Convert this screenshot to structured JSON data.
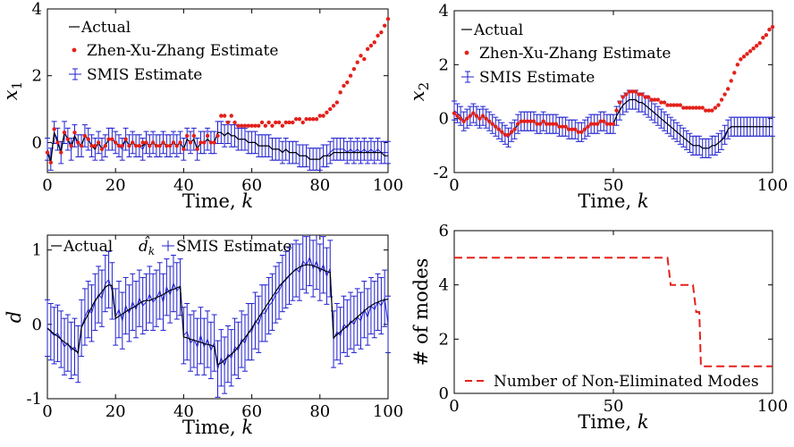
{
  "chart_data": [
    {
      "type": "line",
      "ylabel": "x",
      "ylabel_sub": "1",
      "xlabel": "Time,",
      "xlabel_var": "k",
      "xlim": [
        0,
        100
      ],
      "ylim": [
        -0.9,
        4
      ],
      "xticks": [
        0,
        20,
        40,
        60,
        80,
        100
      ],
      "yticks": [
        0,
        2,
        4
      ],
      "legend": [
        "Actual",
        "Zhen-Xu-Zhang Estimate",
        "SMIS Estimate"
      ],
      "legend_position": "top-left",
      "colors": {
        "actual": "#000000",
        "zxz": "#e3211c",
        "smis": "#1f1fd0"
      },
      "error_half_width": 0.33,
      "series": [
        {
          "name": "Actual",
          "values": [
            -0.3,
            -0.6,
            0.3,
            0.0,
            -0.3,
            0.3,
            0.1,
            -0.1,
            0.2,
            0.0,
            -0.1,
            0.2,
            0.1,
            -0.1,
            -0.2,
            0.0,
            -0.2,
            -0.1,
            0.1,
            0.1,
            0.0,
            -0.1,
            -0.1,
            0.1,
            -0.1,
            0.0,
            -0.1,
            -0.1,
            -0.1,
            0.0,
            -0.1,
            0.0,
            -0.1,
            -0.1,
            0.0,
            -0.1,
            -0.1,
            0.0,
            -0.1,
            0.0,
            -0.2,
            0.1,
            0.0,
            0.1,
            -0.2,
            0.0,
            0.0,
            0.1,
            0.0,
            0.0,
            0.3,
            0.3,
            0.2,
            0.3,
            0.2,
            0.2,
            0.1,
            0.1,
            0.1,
            0.0,
            0.0,
            0.0,
            -0.1,
            -0.1,
            -0.1,
            -0.1,
            -0.2,
            -0.2,
            -0.2,
            -0.3,
            -0.2,
            -0.3,
            -0.3,
            -0.3,
            -0.4,
            -0.4,
            -0.4,
            -0.5,
            -0.5,
            -0.5,
            -0.5,
            -0.4,
            -0.4,
            -0.4,
            -0.3,
            -0.3,
            -0.3,
            -0.3,
            -0.3,
            -0.3,
            -0.3,
            -0.3,
            -0.3,
            -0.3,
            -0.3,
            -0.3,
            -0.3,
            -0.3,
            -0.3,
            -0.4,
            -0.4
          ]
        },
        {
          "name": "Zhen-Xu-Zhang Estimate",
          "values": [
            -0.3,
            -0.6,
            0.4,
            0.0,
            -0.3,
            0.3,
            0.1,
            -0.1,
            0.3,
            0.0,
            -0.1,
            0.2,
            0.1,
            -0.1,
            -0.1,
            0.0,
            -0.2,
            -0.1,
            0.1,
            0.1,
            0.0,
            -0.1,
            -0.1,
            0.1,
            -0.1,
            0.0,
            -0.1,
            -0.1,
            0.0,
            0.0,
            -0.1,
            0.0,
            -0.1,
            -0.1,
            0.0,
            -0.1,
            -0.1,
            0.0,
            -0.1,
            0.0,
            -0.2,
            0.2,
            0.0,
            0.2,
            -0.2,
            0.0,
            0.0,
            0.2,
            0.0,
            0.0,
            0.2,
            0.8,
            0.8,
            0.6,
            0.8,
            0.6,
            0.5,
            0.5,
            0.5,
            0.5,
            0.5,
            0.5,
            0.5,
            0.6,
            0.5,
            0.6,
            0.5,
            0.6,
            0.6,
            0.5,
            0.6,
            0.6,
            0.6,
            0.7,
            0.7,
            0.6,
            0.7,
            0.7,
            0.7,
            0.7,
            0.8,
            0.8,
            0.9,
            1.0,
            1.1,
            1.2,
            1.5,
            1.7,
            1.8,
            2.0,
            2.2,
            2.4,
            2.6,
            2.5,
            2.8,
            2.9,
            3.0,
            3.2,
            3.3,
            3.5,
            3.7
          ]
        },
        {
          "name": "SMIS Estimate",
          "values": [
            -0.2,
            -0.5,
            0.3,
            0.1,
            -0.3,
            0.3,
            0.1,
            -0.2,
            0.2,
            -0.1,
            -0.1,
            0.2,
            0.1,
            -0.1,
            -0.2,
            0.0,
            -0.2,
            -0.1,
            0.1,
            0.1,
            0.0,
            -0.1,
            -0.2,
            0.1,
            -0.1,
            0.0,
            -0.1,
            -0.1,
            -0.2,
            0.0,
            -0.1,
            0.0,
            -0.1,
            -0.1,
            0.0,
            -0.1,
            -0.1,
            0.0,
            -0.1,
            0.0,
            -0.2,
            0.1,
            0.0,
            0.1,
            -0.2,
            0.0,
            0.0,
            0.1,
            0.0,
            0.0,
            0.3,
            0.3,
            0.2,
            0.3,
            0.2,
            0.2,
            0.1,
            0.1,
            0.1,
            0.0,
            0.0,
            0.0,
            -0.1,
            -0.1,
            -0.1,
            -0.1,
            -0.2,
            -0.2,
            -0.2,
            -0.3,
            -0.2,
            -0.3,
            -0.3,
            -0.3,
            -0.4,
            -0.4,
            -0.4,
            -0.5,
            -0.5,
            -0.5,
            -0.5,
            -0.4,
            -0.4,
            -0.3,
            -0.2,
            -0.2,
            -0.2,
            -0.2,
            -0.3,
            -0.2,
            -0.3,
            -0.2,
            -0.3,
            -0.2,
            -0.3,
            -0.2,
            -0.3,
            -0.2,
            -0.3,
            -0.3,
            -0.3
          ]
        }
      ]
    },
    {
      "type": "line",
      "ylabel": "x",
      "ylabel_sub": "2",
      "xlabel": "Time,",
      "xlabel_var": "k",
      "xlim": [
        0,
        100
      ],
      "ylim": [
        -2,
        4
      ],
      "xticks": [
        0,
        50,
        100
      ],
      "yticks": [
        -2,
        0,
        2,
        4
      ],
      "legend": [
        "Actual",
        "Zhen-Xu-Zhang Estimate",
        "SMIS Estimate"
      ],
      "legend_position": "top-left",
      "colors": {
        "actual": "#000000",
        "zxz": "#e3211c",
        "smis": "#1f1fd0"
      },
      "error_half_width": 0.35,
      "series": [
        {
          "name": "Actual",
          "values": [
            0.2,
            0.1,
            0.0,
            -0.1,
            0.0,
            0.1,
            0.2,
            0.1,
            0.0,
            0.1,
            0.0,
            -0.1,
            -0.2,
            -0.3,
            -0.4,
            -0.5,
            -0.6,
            -0.6,
            -0.5,
            -0.4,
            -0.2,
            -0.1,
            -0.1,
            -0.1,
            -0.1,
            -0.1,
            -0.2,
            -0.2,
            -0.1,
            -0.2,
            -0.2,
            -0.2,
            -0.2,
            -0.3,
            -0.3,
            -0.3,
            -0.4,
            -0.4,
            -0.4,
            -0.5,
            -0.5,
            -0.4,
            -0.3,
            -0.2,
            -0.2,
            -0.2,
            -0.1,
            -0.1,
            -0.2,
            -0.2,
            -0.2,
            0.1,
            0.3,
            0.5,
            0.6,
            0.7,
            0.7,
            0.7,
            0.6,
            0.6,
            0.5,
            0.4,
            0.3,
            0.2,
            0.1,
            0.0,
            -0.1,
            -0.2,
            -0.3,
            -0.4,
            -0.5,
            -0.6,
            -0.7,
            -0.8,
            -0.9,
            -1.0,
            -1.0,
            -1.0,
            -1.1,
            -1.1,
            -1.1,
            -1.0,
            -1.0,
            -0.9,
            -0.8,
            -0.7,
            -0.4,
            -0.3,
            -0.3,
            -0.3,
            -0.3,
            -0.3,
            -0.3,
            -0.3,
            -0.3,
            -0.3,
            -0.3,
            -0.3,
            -0.3,
            -0.3,
            -0.3
          ]
        },
        {
          "name": "Zhen-Xu-Zhang Estimate",
          "values": [
            0.2,
            0.1,
            0.0,
            -0.1,
            0.0,
            0.1,
            0.2,
            0.1,
            0.0,
            0.1,
            0.0,
            -0.1,
            -0.2,
            -0.3,
            -0.4,
            -0.5,
            -0.6,
            -0.6,
            -0.5,
            -0.4,
            -0.2,
            -0.1,
            -0.1,
            -0.1,
            -0.1,
            -0.1,
            -0.2,
            -0.2,
            -0.1,
            -0.2,
            -0.2,
            -0.2,
            -0.2,
            -0.3,
            -0.3,
            -0.3,
            -0.4,
            -0.4,
            -0.4,
            -0.5,
            -0.5,
            -0.4,
            -0.3,
            -0.2,
            -0.2,
            -0.2,
            -0.1,
            -0.1,
            -0.2,
            -0.2,
            -0.2,
            0.3,
            0.6,
            0.8,
            0.9,
            1.0,
            1.0,
            1.0,
            0.9,
            0.9,
            0.8,
            0.8,
            0.7,
            0.7,
            0.7,
            0.6,
            0.6,
            0.5,
            0.5,
            0.5,
            0.5,
            0.5,
            0.4,
            0.4,
            0.4,
            0.4,
            0.4,
            0.4,
            0.4,
            0.3,
            0.3,
            0.3,
            0.4,
            0.5,
            0.7,
            0.9,
            1.1,
            1.4,
            1.7,
            2.0,
            2.2,
            2.3,
            2.4,
            2.5,
            2.6,
            2.7,
            2.8,
            3.0,
            3.1,
            3.3,
            3.4
          ]
        },
        {
          "name": "SMIS Estimate",
          "values": [
            0.3,
            0.2,
            0.1,
            -0.1,
            0.0,
            0.1,
            0.2,
            0.1,
            0.0,
            0.1,
            0.0,
            -0.1,
            -0.2,
            -0.3,
            -0.4,
            -0.5,
            -0.6,
            -0.7,
            -0.5,
            -0.4,
            -0.2,
            -0.1,
            -0.1,
            -0.1,
            -0.1,
            -0.1,
            -0.2,
            -0.2,
            -0.1,
            -0.2,
            -0.2,
            -0.2,
            -0.2,
            -0.3,
            -0.3,
            -0.3,
            -0.4,
            -0.4,
            -0.4,
            -0.5,
            -0.5,
            -0.4,
            -0.3,
            -0.2,
            -0.2,
            -0.2,
            -0.1,
            -0.1,
            -0.2,
            -0.2,
            -0.2,
            0.1,
            0.3,
            0.5,
            0.6,
            0.7,
            0.7,
            0.7,
            0.6,
            0.6,
            0.5,
            0.4,
            0.3,
            0.2,
            0.1,
            0.0,
            -0.1,
            -0.2,
            -0.3,
            -0.4,
            -0.5,
            -0.6,
            -0.7,
            -0.8,
            -0.9,
            -1.0,
            -1.0,
            -1.0,
            -1.1,
            -1.1,
            -1.1,
            -1.0,
            -1.0,
            -0.9,
            -0.8,
            -0.6,
            -0.4,
            -0.3,
            -0.3,
            -0.3,
            -0.3,
            -0.3,
            -0.3,
            -0.3,
            -0.3,
            -0.3,
            -0.3,
            -0.3,
            -0.3,
            -0.3,
            -0.3
          ]
        }
      ]
    },
    {
      "type": "line",
      "ylabel": "d",
      "xlabel": "Time,",
      "xlabel_var": "k",
      "xlim": [
        0,
        100
      ],
      "ylim": [
        -1,
        1.2
      ],
      "xticks": [
        0,
        20,
        40,
        60,
        80,
        100
      ],
      "yticks": [
        -1,
        0,
        1
      ],
      "legend": [
        "Actual",
        "SMIS Estimate"
      ],
      "legend_estimate_symbol": "d̂",
      "legend_estimate_sub": "k",
      "legend_position": "top",
      "colors": {
        "actual": "#000000",
        "smis": "#1f1fd0"
      },
      "error_half_width": 0.38,
      "series": [
        {
          "name": "Actual",
          "values": [
            -0.05,
            -0.09,
            -0.13,
            -0.16,
            -0.2,
            -0.24,
            -0.27,
            -0.31,
            -0.35,
            -0.38,
            -0.04,
            0.05,
            0.14,
            0.23,
            0.32,
            0.38,
            0.44,
            0.5,
            0.53,
            0.52,
            0.08,
            0.11,
            0.14,
            0.17,
            0.2,
            0.22,
            0.25,
            0.28,
            0.31,
            0.32,
            0.32,
            0.34,
            0.36,
            0.38,
            0.4,
            0.43,
            0.46,
            0.47,
            0.49,
            0.51,
            -0.17,
            -0.18,
            -0.2,
            -0.21,
            -0.23,
            -0.24,
            -0.26,
            -0.27,
            -0.28,
            -0.3,
            -0.54,
            -0.52,
            -0.48,
            -0.44,
            -0.4,
            -0.36,
            -0.3,
            -0.24,
            -0.18,
            -0.12,
            -0.05,
            0.02,
            0.09,
            0.16,
            0.23,
            0.3,
            0.37,
            0.44,
            0.51,
            0.56,
            0.61,
            0.66,
            0.7,
            0.74,
            0.77,
            0.79,
            0.8,
            0.8,
            0.79,
            0.77,
            0.75,
            0.73,
            0.71,
            0.7,
            -0.18,
            -0.14,
            -0.1,
            -0.06,
            -0.02,
            0.02,
            0.06,
            0.1,
            0.14,
            0.18,
            0.22,
            0.25,
            0.28,
            0.3,
            0.32,
            0.33,
            0.34
          ]
        },
        {
          "name": "SMIS Estimate",
          "values": [
            -0.05,
            -0.1,
            -0.15,
            -0.12,
            -0.2,
            -0.3,
            -0.25,
            -0.35,
            -0.3,
            -0.4,
            -0.05,
            0.1,
            0.2,
            0.15,
            0.3,
            0.4,
            0.35,
            0.55,
            0.6,
            0.45,
            0.1,
            0.2,
            0.05,
            0.25,
            0.15,
            0.3,
            0.2,
            0.35,
            0.25,
            0.3,
            0.4,
            0.3,
            0.35,
            0.45,
            0.3,
            0.5,
            0.4,
            0.55,
            0.45,
            0.5,
            -0.15,
            -0.1,
            -0.25,
            -0.2,
            -0.3,
            -0.15,
            -0.3,
            -0.2,
            -0.35,
            -0.25,
            -0.6,
            -0.45,
            -0.55,
            -0.4,
            -0.45,
            -0.3,
            -0.35,
            -0.2,
            -0.25,
            -0.1,
            -0.1,
            0.05,
            0.0,
            0.15,
            0.15,
            0.25,
            0.3,
            0.4,
            0.45,
            0.55,
            0.6,
            0.65,
            0.7,
            0.75,
            0.7,
            0.85,
            0.8,
            0.9,
            0.75,
            0.85,
            0.7,
            0.8,
            0.65,
            0.75,
            -0.2,
            -0.1,
            -0.15,
            0.0,
            -0.05,
            0.05,
            0.0,
            0.1,
            0.05,
            0.2,
            0.1,
            0.25,
            0.2,
            0.3,
            0.25,
            0.35,
            0.0
          ]
        }
      ]
    },
    {
      "type": "line",
      "ylabel": "# of modes",
      "xlabel": "Time,",
      "xlabel_var": "k",
      "xlim": [
        0,
        100
      ],
      "ylim": [
        0,
        6
      ],
      "xticks": [
        0,
        50,
        100
      ],
      "yticks": [
        0,
        2,
        4,
        6
      ],
      "legend": [
        "Number of Non-Eliminated Modes"
      ],
      "legend_position": "bottom",
      "colors": {
        "modes": "#e3211c"
      },
      "series": [
        {
          "name": "Number of Non-Eliminated Modes",
          "x": [
            0,
            67,
            68,
            75,
            76,
            77,
            77.5,
            100
          ],
          "values": [
            5,
            5,
            4,
            4,
            3,
            3,
            1,
            1
          ]
        }
      ]
    }
  ]
}
